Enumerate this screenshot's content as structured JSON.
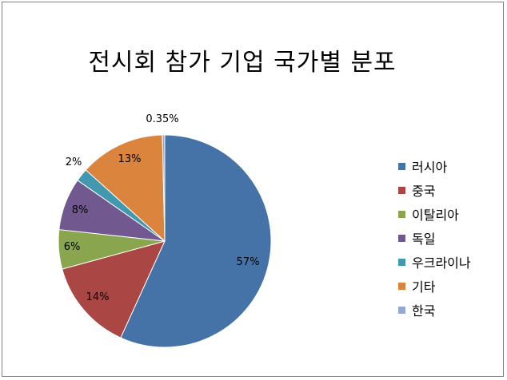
{
  "chart_data": {
    "type": "pie",
    "title": "전시회 참가 기업 국가별 분포",
    "unit": "%",
    "categories": [
      "러시아",
      "중국",
      "이탈리아",
      "독일",
      "우크라이나",
      "기타",
      "한국"
    ],
    "values": [
      57,
      14,
      6,
      8,
      2,
      13,
      0.35
    ],
    "labels": [
      "57%",
      "14%",
      "6%",
      "8%",
      "2%",
      "13%",
      "0.35%"
    ],
    "colors": [
      "#4572A7",
      "#AA4643",
      "#89A54E",
      "#71588F",
      "#4198AF",
      "#DB843D",
      "#93A9CF"
    ],
    "start_angle_deg": 0,
    "direction": "clockwise",
    "legend_position": "right"
  }
}
